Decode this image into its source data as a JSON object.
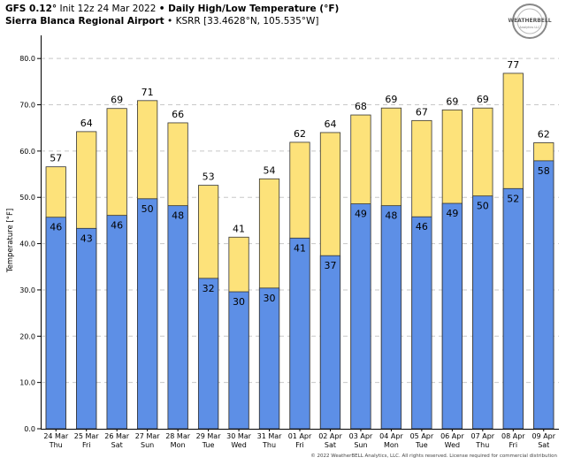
{
  "header": {
    "model": "GFS 0.12",
    "init": "Init 12z 24 Mar 2022",
    "title": "Daily High/Low Temperature (°F)",
    "location": "Sierra Blanca Regional Airport",
    "station": "KSRR [33.4628°N, 105.535°W]"
  },
  "logo": {
    "text": "WEATHERBELL",
    "sub": "Analytics LLC"
  },
  "footer": {
    "copyright": "© 2022 WeatherBELL Analytics, LLC. All rights reserved. License required for commercial distribution"
  },
  "colors": {
    "high": "#fde27a",
    "low": "#5d8fe6",
    "grid": "#c8c8c8",
    "outline": "#333333"
  },
  "chart_data": {
    "type": "bar",
    "title": "Daily High/Low Temperature (°F)",
    "ylabel": "Temperature [°F]",
    "xlabel": "",
    "ylim": [
      0,
      85
    ],
    "yticks": [
      "0.0",
      "10.0",
      "20.0",
      "30.0",
      "40.0",
      "50.0",
      "60.0",
      "70.0",
      "80.0"
    ],
    "grid": true,
    "categories": [
      {
        "date": "24 Mar",
        "day": "Thu"
      },
      {
        "date": "25 Mar",
        "day": "Fri"
      },
      {
        "date": "26 Mar",
        "day": "Sat"
      },
      {
        "date": "27 Mar",
        "day": "Sun"
      },
      {
        "date": "28 Mar",
        "day": "Mon"
      },
      {
        "date": "29 Mar",
        "day": "Tue"
      },
      {
        "date": "30 Mar",
        "day": "Wed"
      },
      {
        "date": "31 Mar",
        "day": "Thu"
      },
      {
        "date": "01 Apr",
        "day": "Fri"
      },
      {
        "date": "02 Apr",
        "day": "Sat"
      },
      {
        "date": "03 Apr",
        "day": "Sun"
      },
      {
        "date": "04 Apr",
        "day": "Mon"
      },
      {
        "date": "05 Apr",
        "day": "Tue"
      },
      {
        "date": "06 Apr",
        "day": "Wed"
      },
      {
        "date": "07 Apr",
        "day": "Thu"
      },
      {
        "date": "08 Apr",
        "day": "Fri"
      },
      {
        "date": "09 Apr",
        "day": "Sat"
      }
    ],
    "series": [
      {
        "name": "High",
        "values": [
          57,
          64,
          69,
          71,
          66,
          53,
          41,
          54,
          62,
          64,
          68,
          69,
          67,
          69,
          69,
          77,
          62
        ],
        "exact": [
          56.6,
          64.2,
          69.2,
          70.9,
          66.1,
          52.6,
          41.4,
          54.0,
          61.9,
          64.0,
          67.8,
          69.3,
          66.6,
          68.9,
          69.3,
          76.8,
          61.8
        ]
      },
      {
        "name": "Low",
        "values": [
          46,
          43,
          46,
          50,
          48,
          32,
          30,
          30,
          41,
          37,
          49,
          48,
          46,
          49,
          50,
          52,
          58
        ],
        "exact": [
          45.7,
          43.3,
          46.1,
          49.7,
          48.2,
          32.5,
          29.6,
          30.4,
          41.2,
          37.4,
          48.6,
          48.2,
          45.8,
          48.7,
          50.3,
          51.9,
          57.9
        ]
      }
    ]
  }
}
